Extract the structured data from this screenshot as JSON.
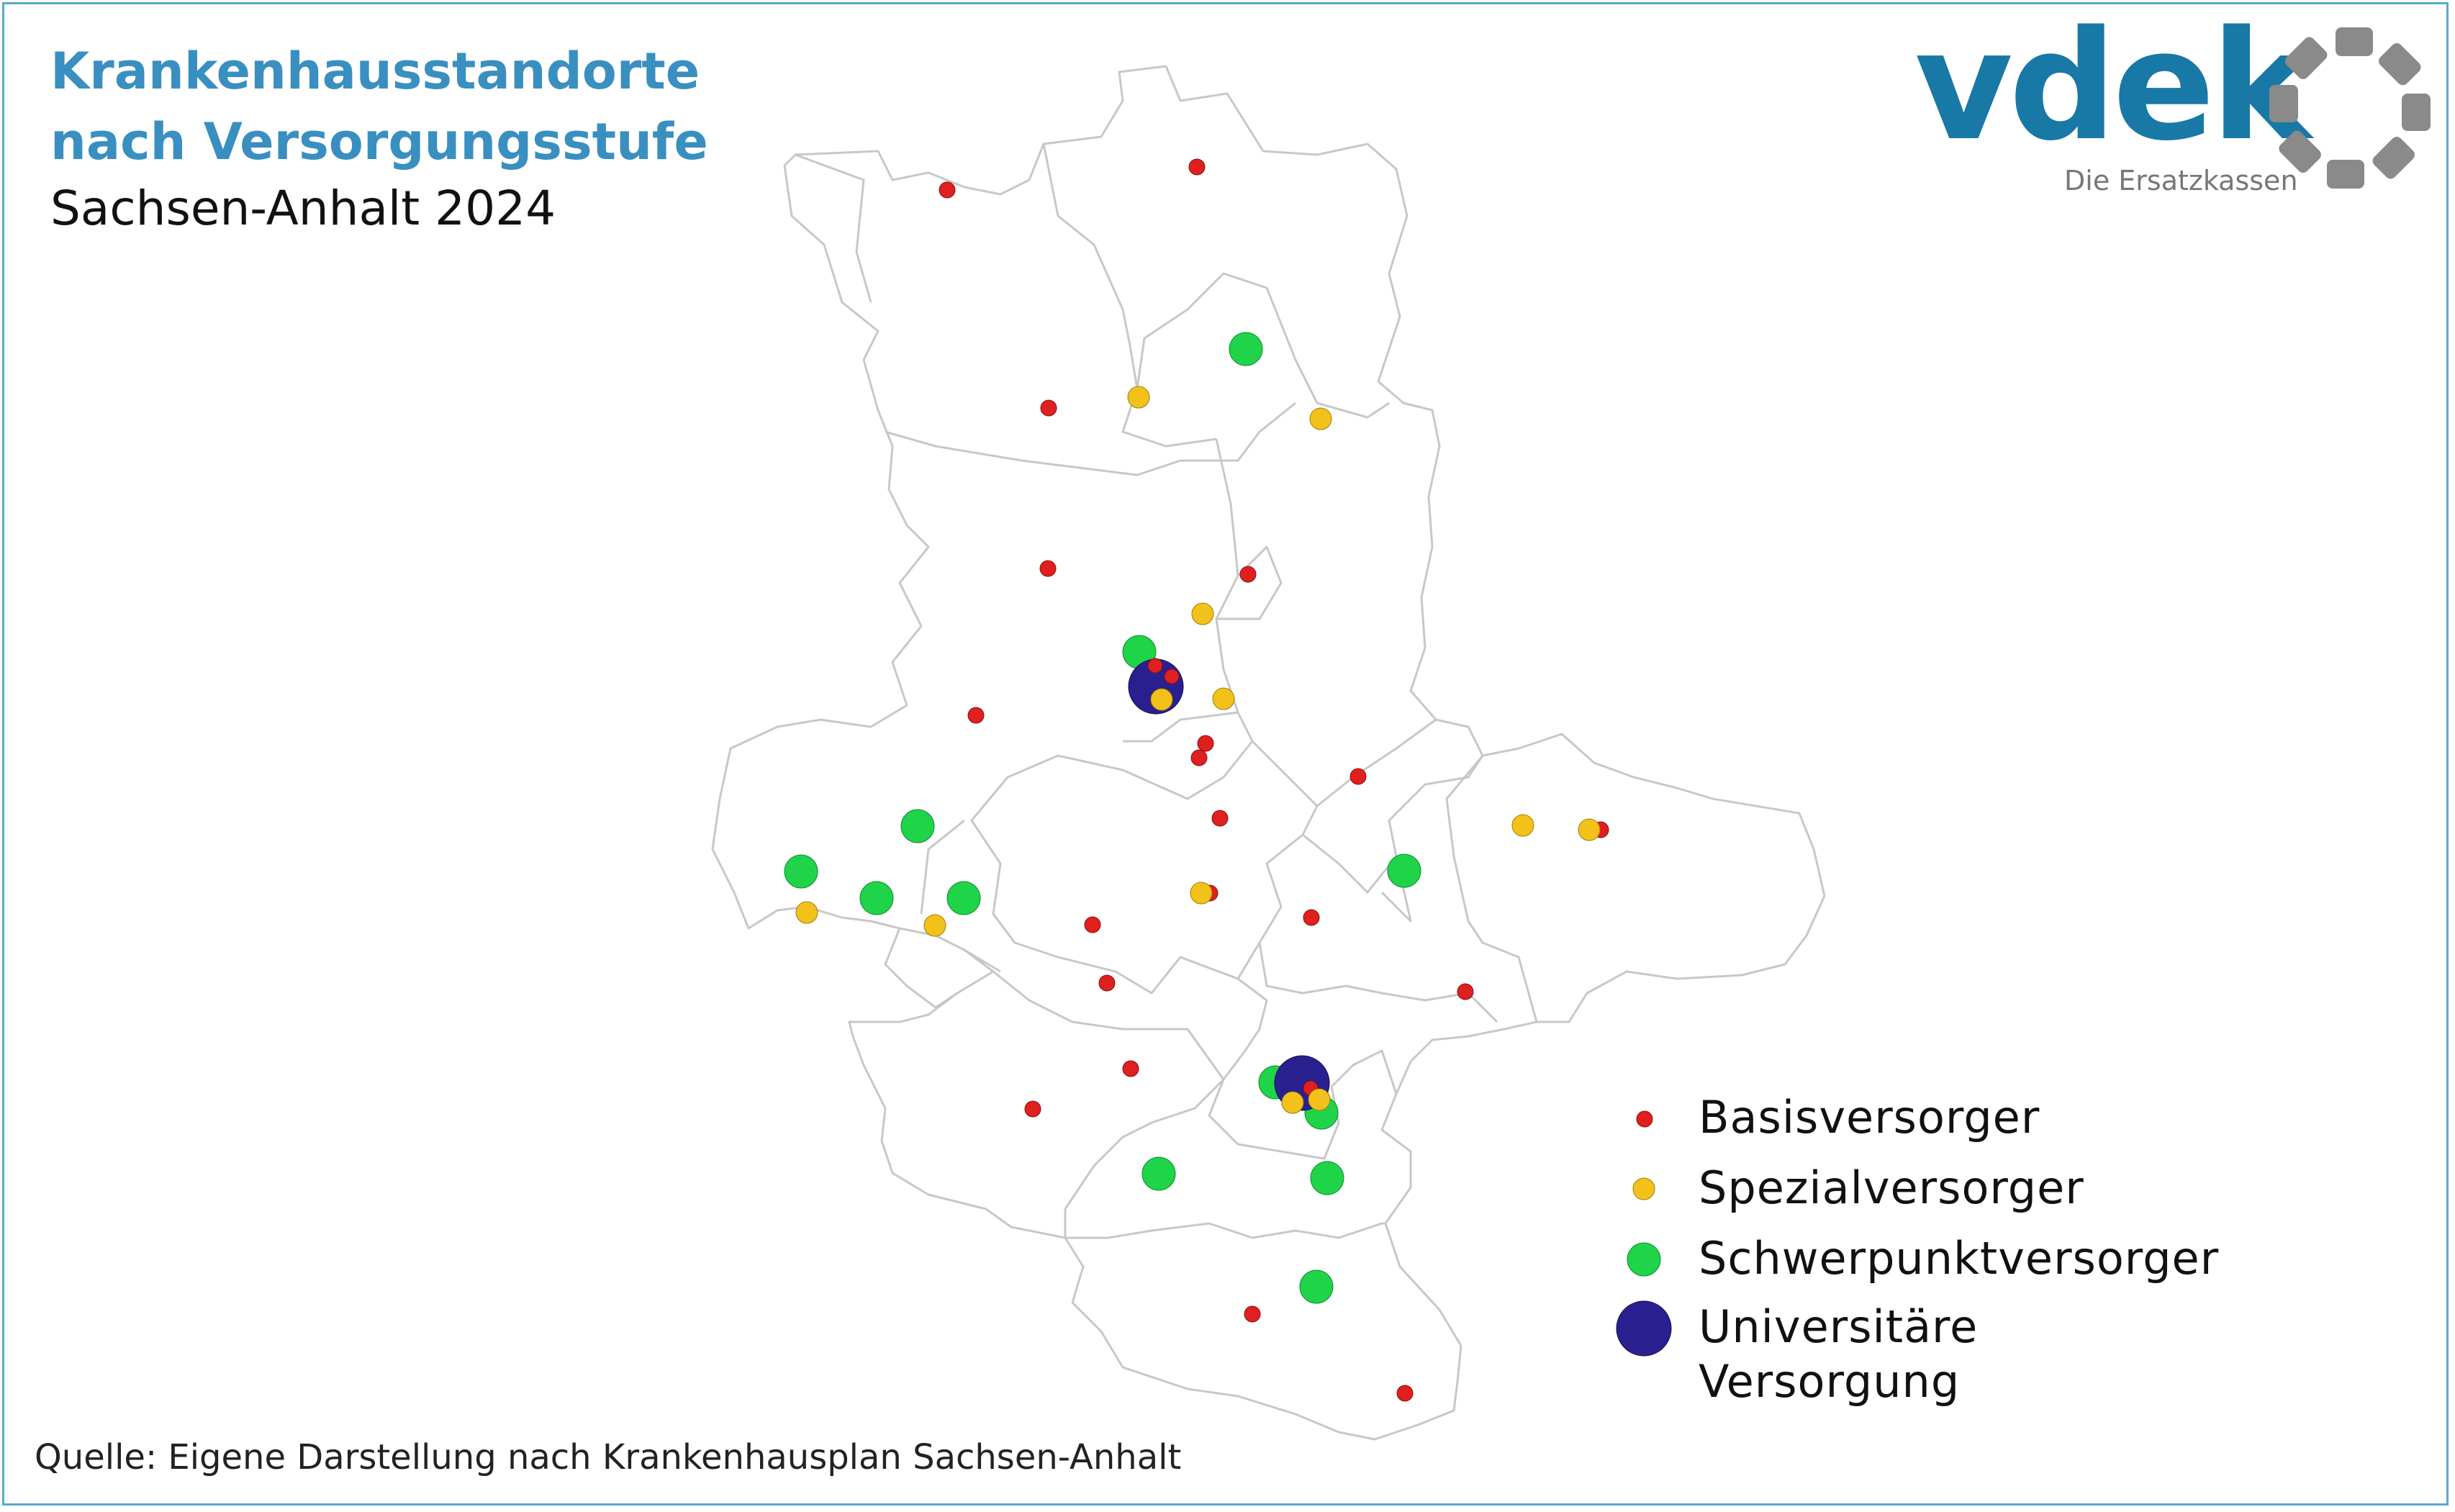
{
  "header": {
    "title": "Krankenhausstandorte nach Versorgungsstufe",
    "subtitle": "Sachsen-Anhalt 2024"
  },
  "logo": {
    "wordmark": "vdek",
    "tagline": "Die Ersatzkassen"
  },
  "source": "Quelle: Eigene Darstellung nach Krankenhausplan Sachsen-Anhalt",
  "colors": {
    "title": "#3a8fc1",
    "frame": "#5aa8d0",
    "border_line": "#c8c8c8",
    "logo_blue": "#1878a6",
    "logo_gray": "#8a8a8a"
  },
  "legend": {
    "items": [
      {
        "key": "basis",
        "label": "Basisversorger",
        "color": "#e01f1f"
      },
      {
        "key": "spezial",
        "label": "Spezialversorger",
        "color": "#f2c21b"
      },
      {
        "key": "schwerpunkt",
        "label": "Schwerpunktversorger",
        "color": "#1fd448"
      },
      {
        "key": "uni",
        "label": "Universitäre Versorgung",
        "color": "#2a1f8f"
      }
    ]
  }
}
